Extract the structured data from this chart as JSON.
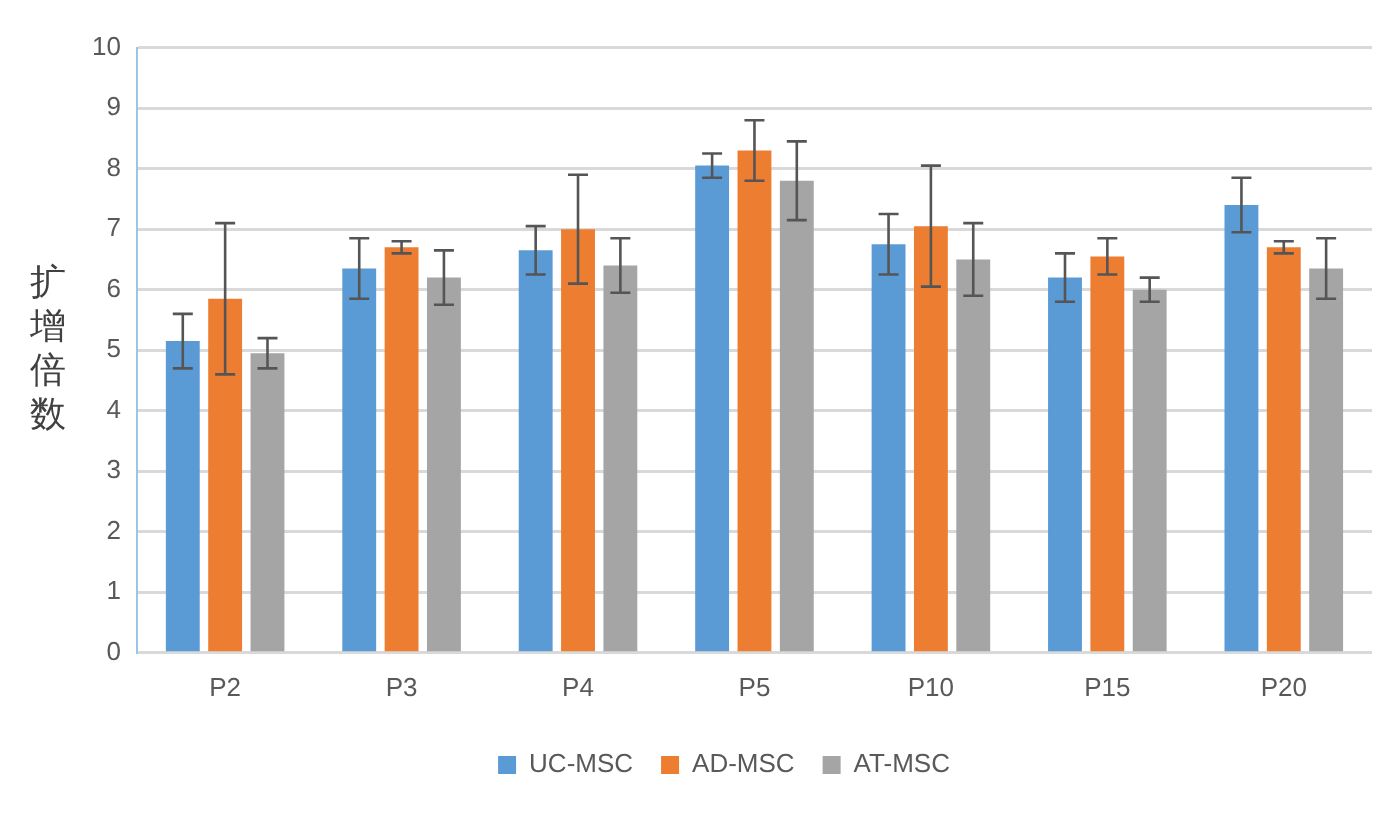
{
  "chart_data": {
    "type": "bar",
    "ylabel": "扩增倍数",
    "categories": [
      "P2",
      "P3",
      "P4",
      "P5",
      "P10",
      "P15",
      "P20"
    ],
    "series": [
      {
        "name": "UC-MSC",
        "color": "#5b9bd5",
        "values": [
          5.15,
          6.35,
          6.65,
          8.05,
          6.75,
          6.2,
          7.4
        ],
        "errors": [
          0.45,
          0.5,
          0.4,
          0.2,
          0.5,
          0.4,
          0.45
        ]
      },
      {
        "name": "AD-MSC",
        "color": "#ed7d31",
        "values": [
          5.85,
          6.7,
          7.0,
          8.3,
          7.05,
          6.55,
          6.7
        ],
        "errors": [
          1.25,
          0.1,
          0.9,
          0.5,
          1.0,
          0.3,
          0.1
        ]
      },
      {
        "name": "AT-MSC",
        "color": "#a5a5a5",
        "values": [
          4.95,
          6.2,
          6.4,
          7.8,
          6.5,
          6.0,
          6.35
        ],
        "errors": [
          0.25,
          0.45,
          0.45,
          0.65,
          0.6,
          0.2,
          0.5
        ]
      }
    ],
    "ylim": [
      0,
      10
    ],
    "yticks": [
      0,
      1,
      2,
      3,
      4,
      5,
      6,
      7,
      8,
      9,
      10
    ],
    "grid": "y",
    "legend": "bottom"
  }
}
